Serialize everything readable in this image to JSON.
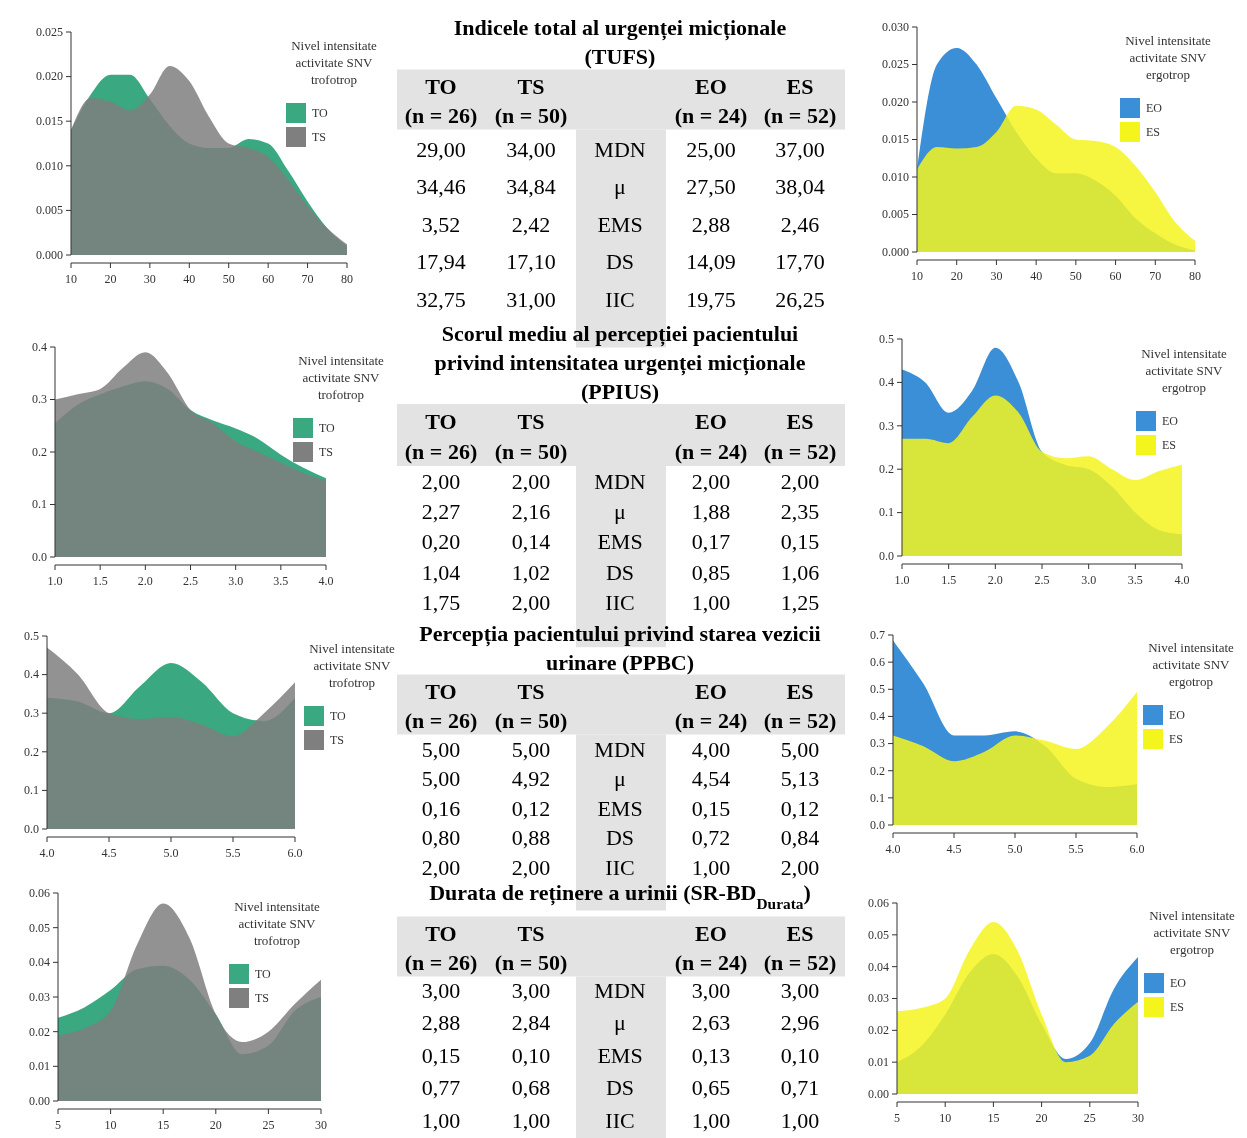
{
  "chart_data": [
    {
      "type": "area",
      "x": [
        10,
        15,
        20,
        25,
        30,
        35,
        40,
        45,
        50,
        55,
        60,
        65,
        70,
        75,
        80
      ],
      "legend": "top right",
      "legend_title": "Nivel intensitate activitate SNV trofotrop",
      "xlim": [
        10,
        80
      ],
      "xticks": [
        10,
        20,
        30,
        40,
        50,
        60,
        70,
        80
      ],
      "ylim": [
        0,
        0.025
      ],
      "yticks": [
        {
          "value": 0,
          "label": "0.000"
        },
        {
          "value": 0.005,
          "label": "0.005"
        },
        {
          "value": 0.01,
          "label": "0.010"
        },
        {
          "value": 0.015,
          "label": "0.015"
        },
        {
          "value": 0.02,
          "label": "0.020"
        },
        {
          "value": 0.025,
          "label": "0.025"
        }
      ],
      "series": [
        {
          "name": "TO",
          "color": "#3aa881",
          "values": [
            0.014,
            0.018,
            0.0202,
            0.0202,
            0.0175,
            0.0145,
            0.0125,
            0.012,
            0.012,
            0.013,
            0.0125,
            0.0095,
            0.006,
            0.003,
            0.001
          ]
        },
        {
          "name": "TS",
          "color": "#7f7f7f",
          "values": [
            0.014,
            0.0176,
            0.0172,
            0.0162,
            0.018,
            0.0212,
            0.0195,
            0.0155,
            0.0125,
            0.012,
            0.011,
            0.0085,
            0.0055,
            0.003,
            0.0012
          ]
        }
      ]
    },
    {
      "type": "other",
      "title": "Indicele total al urgenței micționale (TUFS)",
      "annotations": [
        "TO",
        "TS",
        "EO",
        "ES",
        "(n = 26)",
        "(n = 50)",
        "(n = 24)",
        "(n = 52)",
        "29,00",
        "34,00",
        "MDN",
        "25,00",
        "37,00",
        "34,46",
        "34,84",
        "μ",
        "27,50",
        "38,04",
        "3,52",
        "2,42",
        "EMS",
        "2,88",
        "2,46",
        "17,94",
        "17,10",
        "DS",
        "14,09",
        "17,70",
        "32,75",
        "31,00",
        "IIC",
        "19,75",
        "26,25"
      ]
    },
    {
      "type": "area",
      "x": [
        10,
        15,
        20,
        25,
        30,
        35,
        40,
        45,
        50,
        55,
        60,
        65,
        70,
        75,
        80
      ],
      "legend": "top right",
      "legend_title": "Nivel intensitate activitate SNV ergotrop",
      "xlim": [
        10,
        80
      ],
      "xticks": [
        10,
        20,
        30,
        40,
        50,
        60,
        70,
        80
      ],
      "ylim": [
        0,
        0.03
      ],
      "yticks": [
        {
          "value": 0,
          "label": "0.000"
        },
        {
          "value": 0.005,
          "label": "0.005"
        },
        {
          "value": 0.01,
          "label": "0.010"
        },
        {
          "value": 0.015,
          "label": "0.015"
        },
        {
          "value": 0.02,
          "label": "0.020"
        },
        {
          "value": 0.025,
          "label": "0.025"
        },
        {
          "value": 0.03,
          "label": "0.030"
        }
      ],
      "series": [
        {
          "name": "EO",
          "color": "#3b8fd6",
          "values": [
            0.011,
            0.025,
            0.0272,
            0.025,
            0.0205,
            0.016,
            0.0125,
            0.0105,
            0.0105,
            0.0095,
            0.0075,
            0.0045,
            0.0025,
            0.001,
            0.0002
          ]
        },
        {
          "name": "ES",
          "color": "#f5f51e",
          "values": [
            0.011,
            0.014,
            0.0138,
            0.014,
            0.016,
            0.0195,
            0.019,
            0.017,
            0.015,
            0.0148,
            0.014,
            0.0115,
            0.008,
            0.004,
            0.0015
          ]
        }
      ]
    },
    {
      "type": "area",
      "x": [
        1,
        1.25,
        1.5,
        1.75,
        2,
        2.25,
        2.5,
        2.75,
        3,
        3.25,
        3.5,
        3.75,
        4
      ],
      "legend": "top right",
      "legend_title": "Nivel intensitate activitate SNV trofotrop",
      "xlim": [
        1,
        4
      ],
      "xticks": [
        {
          "value": 1,
          "label": "1.0"
        },
        {
          "value": 1.5,
          "label": "1.5"
        },
        {
          "value": 2,
          "label": "2.0"
        },
        {
          "value": 2.5,
          "label": "2.5"
        },
        {
          "value": 3,
          "label": "3.0"
        },
        {
          "value": 3.5,
          "label": "3.5"
        },
        {
          "value": 4,
          "label": "4.0"
        }
      ],
      "ylim": [
        0,
        0.4
      ],
      "yticks": [
        {
          "value": 0,
          "label": "0.0"
        },
        {
          "value": 0.1,
          "label": "0.1"
        },
        {
          "value": 0.2,
          "label": "0.2"
        },
        {
          "value": 0.3,
          "label": "0.3"
        },
        {
          "value": 0.4,
          "label": "0.4"
        }
      ],
      "series": [
        {
          "name": "TO",
          "color": "#3aa881",
          "values": [
            0.255,
            0.29,
            0.31,
            0.325,
            0.335,
            0.32,
            0.28,
            0.26,
            0.245,
            0.225,
            0.195,
            0.17,
            0.15
          ]
        },
        {
          "name": "TS",
          "color": "#7f7f7f",
          "values": [
            0.3,
            0.31,
            0.32,
            0.36,
            0.39,
            0.35,
            0.28,
            0.255,
            0.22,
            0.2,
            0.18,
            0.16,
            0.145
          ]
        }
      ]
    },
    {
      "type": "other",
      "title": "Scorul mediu al percepției pacientului privind intensitatea urgenței micționale (PPIUS)",
      "annotations": [
        "TO",
        "TS",
        "EO",
        "ES",
        "(n = 26)",
        "(n = 50)",
        "(n = 24)",
        "(n = 52)",
        "2,00",
        "2,00",
        "MDN",
        "2,00",
        "2,00",
        "2,27",
        "2,16",
        "μ",
        "1,88",
        "2,35",
        "0,20",
        "0,14",
        "EMS",
        "0,17",
        "0,15",
        "1,04",
        "1,02",
        "DS",
        "0,85",
        "1,06",
        "1,75",
        "2,00",
        "IIC",
        "1,00",
        "1,25"
      ]
    },
    {
      "type": "area",
      "x": [
        1,
        1.25,
        1.5,
        1.75,
        2,
        2.25,
        2.5,
        2.75,
        3,
        3.25,
        3.5,
        3.75,
        4
      ],
      "legend": "top right",
      "legend_title": "Nivel intensitate activitate SNV ergotrop",
      "xlim": [
        1,
        4
      ],
      "xticks": [
        {
          "value": 1,
          "label": "1.0"
        },
        {
          "value": 1.5,
          "label": "1.5"
        },
        {
          "value": 2,
          "label": "2.0"
        },
        {
          "value": 2.5,
          "label": "2.5"
        },
        {
          "value": 3,
          "label": "3.0"
        },
        {
          "value": 3.5,
          "label": "3.5"
        },
        {
          "value": 4,
          "label": "4.0"
        }
      ],
      "ylim": [
        0,
        0.5
      ],
      "yticks": [
        {
          "value": 0,
          "label": "0.0"
        },
        {
          "value": 0.1,
          "label": "0.1"
        },
        {
          "value": 0.2,
          "label": "0.2"
        },
        {
          "value": 0.3,
          "label": "0.3"
        },
        {
          "value": 0.4,
          "label": "0.4"
        },
        {
          "value": 0.5,
          "label": "0.5"
        }
      ],
      "series": [
        {
          "name": "EO",
          "color": "#3b8fd6",
          "values": [
            0.43,
            0.4,
            0.33,
            0.38,
            0.48,
            0.4,
            0.24,
            0.21,
            0.2,
            0.16,
            0.1,
            0.06,
            0.05
          ]
        },
        {
          "name": "ES",
          "color": "#f5f51e",
          "values": [
            0.27,
            0.27,
            0.26,
            0.32,
            0.37,
            0.33,
            0.24,
            0.225,
            0.23,
            0.2,
            0.175,
            0.195,
            0.21
          ]
        }
      ]
    },
    {
      "type": "area",
      "x": [
        4,
        4.25,
        4.5,
        4.75,
        5,
        5.25,
        5.5,
        5.75,
        6
      ],
      "legend": "top right",
      "legend_title": "Nivel intensitate activitate SNV trofotrop",
      "xlim": [
        4,
        6
      ],
      "xticks": [
        {
          "value": 4,
          "label": "4.0"
        },
        {
          "value": 4.5,
          "label": "4.5"
        },
        {
          "value": 5,
          "label": "5.0"
        },
        {
          "value": 5.5,
          "label": "5.5"
        },
        {
          "value": 6,
          "label": "6.0"
        }
      ],
      "ylim": [
        0,
        0.5
      ],
      "yticks": [
        {
          "value": 0,
          "label": "0.0"
        },
        {
          "value": 0.1,
          "label": "0.1"
        },
        {
          "value": 0.2,
          "label": "0.2"
        },
        {
          "value": 0.3,
          "label": "0.3"
        },
        {
          "value": 0.4,
          "label": "0.4"
        },
        {
          "value": 0.5,
          "label": "0.5"
        }
      ],
      "series": [
        {
          "name": "TO",
          "color": "#3aa881",
          "values": [
            0.34,
            0.33,
            0.3,
            0.37,
            0.43,
            0.38,
            0.3,
            0.28,
            0.34
          ]
        },
        {
          "name": "TS",
          "color": "#7f7f7f",
          "values": [
            0.47,
            0.4,
            0.3,
            0.285,
            0.29,
            0.27,
            0.24,
            0.3,
            0.38
          ]
        }
      ]
    },
    {
      "type": "other",
      "title": "Percepția pacientului privind starea vezicii urinare (PPBC)",
      "annotations": [
        "TO",
        "TS",
        "EO",
        "ES",
        "(n = 26)",
        "(n = 50)",
        "(n = 24)",
        "(n = 52)",
        "5,00",
        "5,00",
        "MDN",
        "4,00",
        "5,00",
        "5,00",
        "4,92",
        "μ",
        "4,54",
        "5,13",
        "0,16",
        "0,12",
        "EMS",
        "0,15",
        "0,12",
        "0,80",
        "0,88",
        "DS",
        "0,72",
        "0,84",
        "2,00",
        "2,00",
        "IIC",
        "1,00",
        "2,00"
      ]
    },
    {
      "type": "area",
      "x": [
        4,
        4.25,
        4.5,
        4.75,
        5,
        5.25,
        5.5,
        5.75,
        6
      ],
      "legend": "top right",
      "legend_title": "Nivel intensitate activitate SNV ergotrop",
      "xlim": [
        4,
        6
      ],
      "xticks": [
        {
          "value": 4,
          "label": "4.0"
        },
        {
          "value": 4.5,
          "label": "4.5"
        },
        {
          "value": 5,
          "label": "5.0"
        },
        {
          "value": 5.5,
          "label": "5.5"
        },
        {
          "value": 6,
          "label": "6.0"
        }
      ],
      "ylim": [
        0,
        0.7
      ],
      "yticks": [
        {
          "value": 0,
          "label": "0.0"
        },
        {
          "value": 0.1,
          "label": "0.1"
        },
        {
          "value": 0.2,
          "label": "0.2"
        },
        {
          "value": 0.3,
          "label": "0.3"
        },
        {
          "value": 0.4,
          "label": "0.4"
        },
        {
          "value": 0.5,
          "label": "0.5"
        },
        {
          "value": 0.6,
          "label": "0.6"
        },
        {
          "value": 0.7,
          "label": "0.7"
        }
      ],
      "series": [
        {
          "name": "EO",
          "color": "#3b8fd6",
          "values": [
            0.68,
            0.52,
            0.33,
            0.33,
            0.345,
            0.29,
            0.17,
            0.14,
            0.15
          ]
        },
        {
          "name": "ES",
          "color": "#f5f51e",
          "values": [
            0.33,
            0.29,
            0.235,
            0.27,
            0.33,
            0.31,
            0.28,
            0.36,
            0.49
          ]
        }
      ]
    },
    {
      "type": "area",
      "x": [
        5,
        7.5,
        10,
        12.5,
        15,
        17.5,
        20,
        22.5,
        25,
        27.5,
        30
      ],
      "legend": "top right",
      "legend_title": "Nivel intensitate activitate SNV trofotrop",
      "xlim": [
        5,
        30
      ],
      "xticks": [
        5,
        10,
        15,
        20,
        25,
        30
      ],
      "ylim": [
        0,
        0.06
      ],
      "yticks": [
        {
          "value": 0,
          "label": "0.00"
        },
        {
          "value": 0.01,
          "label": "0.01"
        },
        {
          "value": 0.02,
          "label": "0.02"
        },
        {
          "value": 0.03,
          "label": "0.03"
        },
        {
          "value": 0.04,
          "label": "0.04"
        },
        {
          "value": 0.05,
          "label": "0.05"
        },
        {
          "value": 0.06,
          "label": "0.06"
        }
      ],
      "series": [
        {
          "name": "TO",
          "color": "#3aa881",
          "values": [
            0.024,
            0.027,
            0.032,
            0.038,
            0.039,
            0.035,
            0.025,
            0.0135,
            0.016,
            0.026,
            0.03
          ]
        },
        {
          "name": "TS",
          "color": "#7f7f7f",
          "values": [
            0.019,
            0.021,
            0.026,
            0.045,
            0.057,
            0.047,
            0.025,
            0.017,
            0.02,
            0.028,
            0.035
          ]
        }
      ]
    },
    {
      "type": "other",
      "title": "Durata de reținere a urinii (SR-BD$_{Durata}$)",
      "annotations": [
        "TO",
        "TS",
        "EO",
        "ES",
        "(n = 26)",
        "(n = 50)",
        "(n = 24)",
        "(n = 52)",
        "3,00",
        "3,00",
        "MDN",
        "3,00",
        "3,00",
        "2,88",
        "2,84",
        "μ",
        "2,63",
        "2,96",
        "0,15",
        "0,10",
        "EMS",
        "0,13",
        "0,10",
        "0,77",
        "0,68",
        "DS",
        "0,65",
        "0,71",
        "1,00",
        "1,00",
        "IIC",
        "1,00",
        "1,00"
      ]
    },
    {
      "type": "area",
      "x": [
        5,
        7.5,
        10,
        12.5,
        15,
        17.5,
        20,
        22.5,
        25,
        27.5,
        30
      ],
      "legend": "top right",
      "legend_title": "Nivel intensitate activitate SNV ergotrop",
      "xlim": [
        5,
        30
      ],
      "xticks": [
        5,
        10,
        15,
        20,
        25,
        30
      ],
      "ylim": [
        0,
        0.06
      ],
      "yticks": [
        {
          "value": 0,
          "label": "0.00"
        },
        {
          "value": 0.01,
          "label": "0.01"
        },
        {
          "value": 0.02,
          "label": "0.02"
        },
        {
          "value": 0.03,
          "label": "0.03"
        },
        {
          "value": 0.04,
          "label": "0.04"
        },
        {
          "value": 0.05,
          "label": "0.05"
        },
        {
          "value": 0.06,
          "label": "0.06"
        }
      ],
      "series": [
        {
          "name": "EO",
          "color": "#3b8fd6",
          "values": [
            0.01,
            0.015,
            0.025,
            0.038,
            0.044,
            0.037,
            0.022,
            0.011,
            0.016,
            0.033,
            0.043
          ]
        },
        {
          "name": "ES",
          "color": "#f5f51e",
          "values": [
            0.026,
            0.027,
            0.03,
            0.045,
            0.054,
            0.045,
            0.025,
            0.01,
            0.012,
            0.022,
            0.029
          ]
        }
      ]
    }
  ]
}
